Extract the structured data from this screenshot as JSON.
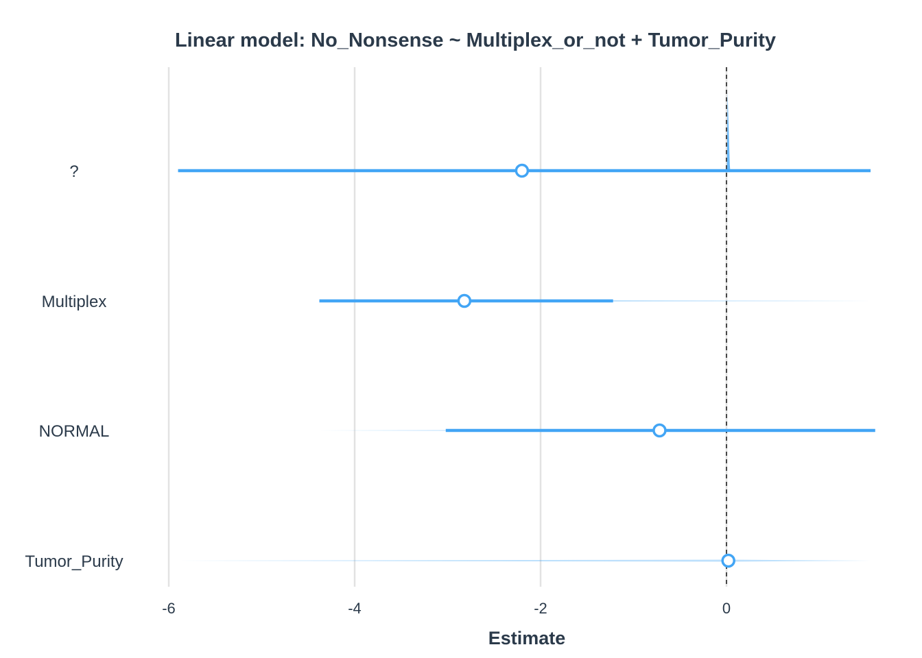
{
  "chart_data": {
    "type": "scatter",
    "title": "Linear model: No_Nonsense ~ Multiplex_or_not + Tumor_Purity",
    "xlabel": "Estimate",
    "ylabel": "",
    "xlim": [
      -6,
      1.6
    ],
    "x_ticks": [
      "-6",
      "-4",
      "-2",
      "0"
    ],
    "x_tick_values": [
      -6,
      -4,
      -2,
      0
    ],
    "reference_line": 0,
    "grid": true,
    "colors": {
      "accent": "#42a5f5",
      "grid": "#e2e2e2",
      "text": "#2b3a4a",
      "refline": "#222222"
    },
    "categories": [
      "?",
      "Multiplex",
      "NORMAL",
      "Tumor_Purity"
    ],
    "estimates": [
      -2.2,
      -2.82,
      -0.72,
      0.02
    ],
    "conf_low": [
      -5.9,
      -4.38,
      -3.02,
      0.0
    ],
    "conf_high": [
      1.55,
      -1.22,
      1.6,
      0.04
    ],
    "range_low": [
      -5.9,
      -4.38,
      -4.4,
      -5.9
    ],
    "range_high": [
      1.55,
      1.6,
      1.6,
      1.55
    ]
  }
}
